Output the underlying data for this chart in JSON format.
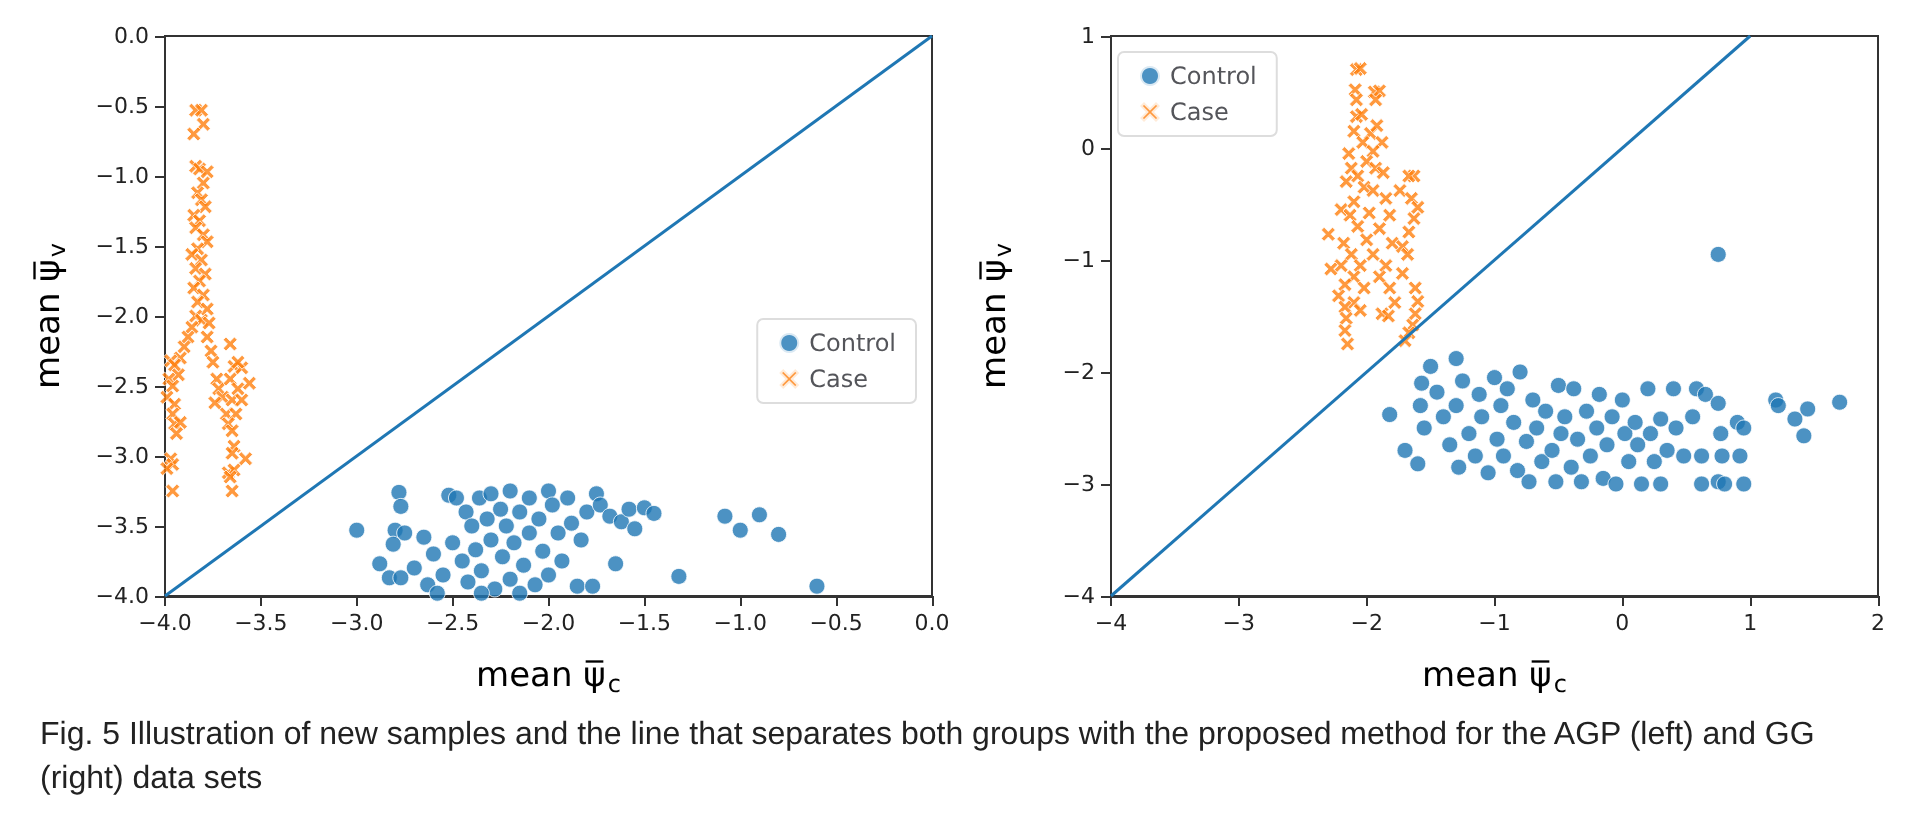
{
  "chart_data": [
    {
      "type": "scatter",
      "xlabel": "mean ψ̅$_{c}$",
      "ylabel": "mean ψ̅$_{v}$",
      "legend": "right",
      "xlim": [
        -4,
        0
      ],
      "ylim": [
        -4,
        0
      ],
      "xticks": [
        {
          "value": -4,
          "label": "−4.0"
        },
        {
          "value": -3.5,
          "label": "−3.5"
        },
        {
          "value": -3,
          "label": "−3.0"
        },
        {
          "value": -2.5,
          "label": "−2.5"
        },
        {
          "value": -2,
          "label": "−2.0"
        },
        {
          "value": -1.5,
          "label": "−1.5"
        },
        {
          "value": -1,
          "label": "−1.0"
        },
        {
          "value": -0.5,
          "label": "−0.5"
        },
        {
          "value": 0,
          "label": "0.0"
        }
      ],
      "yticks": [
        {
          "value": -4,
          "label": "−4.0"
        },
        {
          "value": -3.5,
          "label": "−3.5"
        },
        {
          "value": -3,
          "label": "−3.0"
        },
        {
          "value": -2.5,
          "label": "−2.5"
        },
        {
          "value": -2,
          "label": "−2.0"
        },
        {
          "value": -1.5,
          "label": "−1.5"
        },
        {
          "value": -1,
          "label": "−1.0"
        },
        {
          "value": -0.5,
          "label": "−0.5"
        },
        {
          "value": 0,
          "label": "0.0"
        }
      ],
      "annotations": [
        "Fig. 5 Illustration of new samples and the line that separates both groups with the proposed method for the AGP (left) and GG (right) data sets"
      ],
      "series": [
        {
          "name": "Control",
          "color": "#1f77b4",
          "marker": "circle",
          "x": [
            -3.0,
            -2.78,
            -2.77,
            -2.8,
            -2.81,
            -2.88,
            -2.83,
            -2.77,
            -2.75,
            -2.7,
            -2.65,
            -2.63,
            -2.6,
            -2.55,
            -2.52,
            -2.48,
            -2.5,
            -2.45,
            -2.43,
            -2.42,
            -2.4,
            -2.38,
            -2.36,
            -2.35,
            -2.32,
            -2.3,
            -2.3,
            -2.28,
            -2.25,
            -2.24,
            -2.22,
            -2.2,
            -2.2,
            -2.18,
            -2.15,
            -2.13,
            -2.1,
            -2.1,
            -2.07,
            -2.05,
            -2.03,
            -2.0,
            -2.0,
            -1.98,
            -1.95,
            -1.93,
            -1.9,
            -1.88,
            -1.85,
            -1.83,
            -1.8,
            -1.77,
            -1.75,
            -1.73,
            -1.68,
            -1.65,
            -1.62,
            -1.58,
            -1.55,
            -1.5,
            -1.45,
            -1.32,
            -1.08,
            -1.0,
            -0.9,
            -0.8,
            -0.6,
            -2.58,
            -2.35,
            -2.15
          ],
          "values": [
            -3.53,
            -3.26,
            -3.36,
            -3.53,
            -3.63,
            -3.77,
            -3.87,
            -3.87,
            -3.55,
            -3.8,
            -3.58,
            -3.92,
            -3.7,
            -3.85,
            -3.28,
            -3.3,
            -3.62,
            -3.75,
            -3.4,
            -3.9,
            -3.5,
            -3.67,
            -3.3,
            -3.82,
            -3.45,
            -3.27,
            -3.6,
            -3.95,
            -3.38,
            -3.72,
            -3.5,
            -3.25,
            -3.88,
            -3.62,
            -3.4,
            -3.78,
            -3.3,
            -3.55,
            -3.92,
            -3.45,
            -3.68,
            -3.25,
            -3.85,
            -3.35,
            -3.55,
            -3.75,
            -3.3,
            -3.48,
            -3.93,
            -3.6,
            -3.4,
            -3.93,
            -3.27,
            -3.35,
            -3.43,
            -3.77,
            -3.47,
            -3.38,
            -3.52,
            -3.37,
            -3.41,
            -3.86,
            -3.43,
            -3.53,
            -3.42,
            -3.56,
            -3.93,
            -3.98,
            -3.98,
            -3.98
          ]
        },
        {
          "name": "Case",
          "color": "#ff7f0e",
          "marker": "cross",
          "x": [
            -3.84,
            -3.81,
            -3.8,
            -3.85,
            -3.84,
            -3.82,
            -3.78,
            -3.8,
            -3.83,
            -3.81,
            -3.79,
            -3.85,
            -3.82,
            -3.84,
            -3.8,
            -3.78,
            -3.83,
            -3.86,
            -3.81,
            -3.84,
            -3.79,
            -3.82,
            -3.85,
            -3.8,
            -3.83,
            -3.78,
            -3.84,
            -3.81,
            -3.77,
            -3.86,
            -3.88,
            -3.78,
            -3.9,
            -3.76,
            -3.92,
            -3.97,
            -3.95,
            -3.75,
            -3.93,
            -3.98,
            -3.73,
            -3.96,
            -3.72,
            -3.99,
            -3.95,
            -3.7,
            -3.74,
            -3.96,
            -3.68,
            -3.95,
            -3.92,
            -3.94,
            -3.64,
            -3.66,
            -3.6,
            -3.62,
            -3.56,
            -3.66,
            -3.62,
            -3.65,
            -3.6,
            -3.63,
            -3.67,
            -3.65,
            -3.64,
            -3.65,
            -3.67,
            -3.64,
            -3.66,
            -3.65,
            -3.58,
            -3.97,
            -3.96,
            -3.99,
            -3.96
          ],
          "values": [
            -0.53,
            -0.53,
            -0.63,
            -0.7,
            -0.93,
            -0.95,
            -0.97,
            -1.05,
            -1.12,
            -1.17,
            -1.22,
            -1.28,
            -1.32,
            -1.37,
            -1.42,
            -1.47,
            -1.52,
            -1.56,
            -1.6,
            -1.66,
            -1.7,
            -1.75,
            -1.8,
            -1.85,
            -1.9,
            -1.95,
            -2.0,
            -2.03,
            -2.05,
            -2.08,
            -2.15,
            -2.15,
            -2.22,
            -2.25,
            -2.3,
            -2.32,
            -2.35,
            -2.33,
            -2.42,
            -2.45,
            -2.45,
            -2.5,
            -2.52,
            -2.58,
            -2.63,
            -2.58,
            -2.62,
            -2.7,
            -2.7,
            -2.77,
            -2.76,
            -2.84,
            -2.36,
            -2.2,
            -2.37,
            -2.33,
            -2.48,
            -2.45,
            -2.52,
            -2.6,
            -2.6,
            -2.7,
            -2.77,
            -2.82,
            -2.93,
            -2.98,
            -3.12,
            -3.1,
            -3.15,
            -3.25,
            -3.02,
            -3.02,
            -3.06,
            -3.09,
            -3.25
          ]
        },
        {
          "type": "line",
          "color": "#1f77b4",
          "marker": "none",
          "line_style": "solid",
          "x": [
            -4,
            0
          ],
          "values": [
            -4,
            0
          ]
        }
      ]
    },
    {
      "type": "scatter",
      "xlabel": "mean ψ̅$_{c}$",
      "ylabel": "mean ψ̅$_{v}$",
      "legend": "top left",
      "xlim": [
        -4,
        2
      ],
      "ylim": [
        -4,
        1
      ],
      "xticks": [
        -4,
        -3,
        -2,
        -1,
        0,
        1,
        2
      ],
      "yticks": [
        -4,
        -3,
        -2,
        -1,
        0,
        1
      ],
      "series": [
        {
          "name": "Control",
          "color": "#1f77b4",
          "marker": "circle",
          "x": [
            -1.82,
            -1.7,
            -1.6,
            -1.57,
            -1.58,
            -1.55,
            -1.5,
            -1.45,
            -1.4,
            -1.35,
            -1.3,
            -1.3,
            -1.28,
            -1.25,
            -1.2,
            -1.15,
            -1.12,
            -1.1,
            -1.05,
            -1.0,
            -0.98,
            -0.95,
            -0.93,
            -0.9,
            -0.85,
            -0.82,
            -0.8,
            -0.75,
            -0.73,
            -0.7,
            -0.67,
            -0.63,
            -0.6,
            -0.55,
            -0.52,
            -0.5,
            -0.48,
            -0.45,
            -0.4,
            -0.38,
            -0.35,
            -0.32,
            -0.28,
            -0.25,
            -0.2,
            -0.18,
            -0.15,
            -0.12,
            -0.08,
            -0.05,
            0.0,
            0.02,
            0.05,
            0.1,
            0.12,
            0.15,
            0.2,
            0.22,
            0.25,
            0.3,
            0.3,
            0.35,
            0.4,
            0.42,
            0.48,
            0.55,
            0.58,
            0.62,
            0.62,
            0.65,
            0.75,
            0.75,
            0.77,
            0.78,
            0.8,
            0.9,
            0.92,
            0.95,
            0.95,
            0.75,
            1.2,
            1.22,
            1.35,
            1.42,
            1.45,
            1.7
          ],
          "values": [
            -2.38,
            -2.7,
            -2.82,
            -2.1,
            -2.3,
            -2.5,
            -1.95,
            -2.18,
            -2.4,
            -2.65,
            -1.88,
            -2.3,
            -2.85,
            -2.08,
            -2.55,
            -2.75,
            -2.2,
            -2.4,
            -2.9,
            -2.05,
            -2.6,
            -2.3,
            -2.75,
            -2.15,
            -2.45,
            -2.88,
            -2.0,
            -2.62,
            -2.98,
            -2.25,
            -2.5,
            -2.8,
            -2.35,
            -2.7,
            -2.98,
            -2.12,
            -2.55,
            -2.4,
            -2.85,
            -2.15,
            -2.6,
            -2.98,
            -2.35,
            -2.75,
            -2.5,
            -2.2,
            -2.95,
            -2.65,
            -2.4,
            -3.0,
            -2.25,
            -2.55,
            -2.8,
            -2.45,
            -2.65,
            -3.0,
            -2.15,
            -2.55,
            -2.8,
            -2.42,
            -3.0,
            -2.7,
            -2.15,
            -2.5,
            -2.75,
            -2.4,
            -2.15,
            -2.75,
            -3.0,
            -2.2,
            -2.28,
            -2.98,
            -2.55,
            -2.75,
            -3.0,
            -2.45,
            -2.75,
            -3.0,
            -2.5,
            -0.95,
            -2.25,
            -2.3,
            -2.42,
            -2.57,
            -2.33,
            -2.27
          ]
        },
        {
          "name": "Case",
          "color": "#ff7f0e",
          "marker": "cross",
          "x": [
            -2.08,
            -2.05,
            -2.09,
            -1.94,
            -1.9,
            -2.08,
            -1.93,
            -2.08,
            -2.04,
            -1.97,
            -1.92,
            -2.1,
            -2.03,
            -1.88,
            -2.14,
            -1.95,
            -2.0,
            -2.12,
            -1.93,
            -2.07,
            -1.87,
            -1.63,
            -1.67,
            -2.16,
            -2.02,
            -1.95,
            -1.74,
            -2.2,
            -2.1,
            -1.85,
            -1.65,
            -1.6,
            -2.13,
            -1.98,
            -1.82,
            -1.63,
            -2.3,
            -2.07,
            -1.9,
            -1.67,
            -2.18,
            -2.0,
            -1.8,
            -1.72,
            -2.12,
            -1.95,
            -1.68,
            -2.2,
            -2.05,
            -1.85,
            -2.28,
            -2.1,
            -1.9,
            -1.72,
            -2.17,
            -2.02,
            -1.82,
            -1.62,
            -2.22,
            -2.1,
            -1.78,
            -1.6,
            -2.17,
            -2.05,
            -1.88,
            -1.83,
            -1.62,
            -2.16,
            -1.64,
            -2.17,
            -1.67,
            -1.7,
            -2.15
          ],
          "values": [
            0.7,
            0.71,
            0.52,
            0.5,
            0.51,
            0.43,
            0.43,
            0.28,
            0.3,
            0.13,
            0.2,
            0.15,
            0.05,
            0.05,
            -0.05,
            -0.03,
            -0.12,
            -0.18,
            -0.18,
            -0.25,
            -0.22,
            -0.25,
            -0.25,
            -0.3,
            -0.35,
            -0.38,
            -0.38,
            -0.55,
            -0.48,
            -0.45,
            -0.45,
            -0.53,
            -0.6,
            -0.58,
            -0.6,
            -0.63,
            -0.77,
            -0.7,
            -0.72,
            -0.75,
            -0.85,
            -0.82,
            -0.85,
            -0.88,
            -0.95,
            -0.95,
            -0.95,
            -1.05,
            -1.05,
            -1.05,
            -1.08,
            -1.15,
            -1.15,
            -1.12,
            -1.22,
            -1.25,
            -1.25,
            -1.25,
            -1.32,
            -1.38,
            -1.38,
            -1.37,
            -1.42,
            -1.45,
            -1.48,
            -1.5,
            -1.48,
            -1.52,
            -1.58,
            -1.63,
            -1.65,
            -1.72,
            -1.75
          ]
        },
        {
          "type": "line",
          "color": "#1f77b4",
          "marker": "none",
          "line_style": "solid",
          "x": [
            -4,
            1
          ],
          "values": [
            -4,
            1
          ]
        }
      ]
    }
  ]
}
